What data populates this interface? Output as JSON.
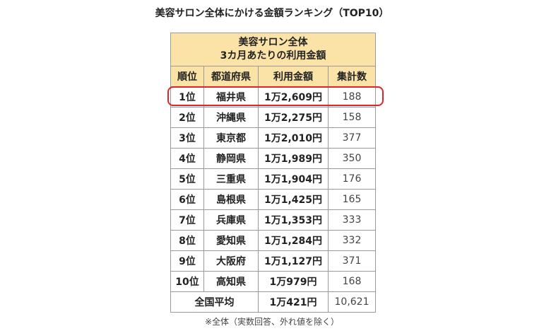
{
  "title": "美容サロン全体にかける金額ランキング（TOP10）",
  "table": {
    "header_line1": "美容サロン全体",
    "header_line2": "3カ月あたりの利用金額",
    "columns": [
      "順位",
      "都道府県",
      "利用金額",
      "集計数"
    ],
    "rows": [
      {
        "rank": "1位",
        "prefecture": "福井県",
        "amount": "1万2,609円",
        "count": "188"
      },
      {
        "rank": "2位",
        "prefecture": "沖縄県",
        "amount": "1万2,275円",
        "count": "158"
      },
      {
        "rank": "3位",
        "prefecture": "東京都",
        "amount": "1万2,010円",
        "count": "377"
      },
      {
        "rank": "4位",
        "prefecture": "静岡県",
        "amount": "1万1,989円",
        "count": "350"
      },
      {
        "rank": "5位",
        "prefecture": "三重県",
        "amount": "1万1,904円",
        "count": "176"
      },
      {
        "rank": "6位",
        "prefecture": "島根県",
        "amount": "1万1,425円",
        "count": "165"
      },
      {
        "rank": "7位",
        "prefecture": "兵庫県",
        "amount": "1万1,353円",
        "count": "333"
      },
      {
        "rank": "8位",
        "prefecture": "愛知県",
        "amount": "1万1,284円",
        "count": "332"
      },
      {
        "rank": "9位",
        "prefecture": "大阪府",
        "amount": "1万1,127円",
        "count": "371"
      },
      {
        "rank": "10位",
        "prefecture": "高知県",
        "amount": "1万979円",
        "count": "168"
      }
    ],
    "average": {
      "label": "全国平均",
      "amount": "1万421円",
      "count": "10,621"
    }
  },
  "highlight_color": "#e0242a",
  "header_color": "#fbe3a8",
  "footnote": "※全体（実数回答、外れ値を除く）"
}
